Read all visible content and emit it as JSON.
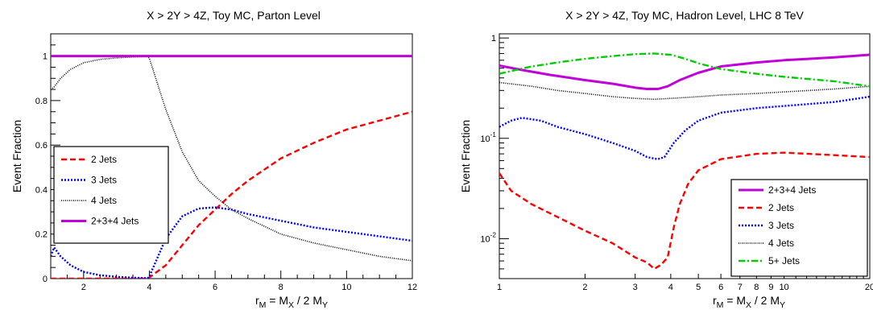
{
  "chart_data": [
    {
      "type": "line",
      "title": "X > 2Y > 4Z,  Toy MC, Parton Level",
      "xlabel": "r_M =  M_X / 2 M_Y",
      "ylabel": "Event Fraction",
      "xlim": [
        1,
        12
      ],
      "ylim": [
        0,
        1.1
      ],
      "xscale": "linear",
      "yscale": "linear",
      "xticks": [
        2,
        4,
        6,
        8,
        10,
        12
      ],
      "xtick_labels": [
        "2",
        "4",
        "6",
        "8",
        "10",
        "12"
      ],
      "yticks": [
        0,
        0.2,
        0.4,
        0.6,
        0.8,
        1
      ],
      "ytick_labels": [
        "0",
        "0.2",
        "0.4",
        "0.6",
        "0.8",
        "1"
      ],
      "legend_position": "left-middle",
      "grid": false,
      "series": [
        {
          "name": "2 Jets",
          "color": "#ff0000",
          "style": "dashed",
          "x": [
            1,
            2,
            3,
            3.95,
            4.0,
            4.5,
            5,
            5.5,
            6,
            6.5,
            7,
            8,
            9,
            10,
            11,
            12
          ],
          "y": [
            0,
            0,
            0,
            0,
            0.005,
            0.06,
            0.15,
            0.24,
            0.31,
            0.38,
            0.44,
            0.54,
            0.61,
            0.67,
            0.71,
            0.75
          ]
        },
        {
          "name": "3 Jets",
          "color": "#0000ff",
          "style": "dotted",
          "x": [
            1,
            1.1,
            1.3,
            1.6,
            2,
            2.5,
            3,
            3.5,
            3.95,
            4.0,
            4.5,
            5,
            5.5,
            6,
            6.5,
            7,
            8,
            9,
            10,
            11,
            12
          ],
          "y": [
            0.1,
            0.14,
            0.1,
            0.06,
            0.03,
            0.015,
            0.008,
            0.004,
            0.002,
            0.01,
            0.18,
            0.28,
            0.315,
            0.32,
            0.31,
            0.29,
            0.26,
            0.23,
            0.21,
            0.19,
            0.17
          ]
        },
        {
          "name": "4 Jets",
          "color": "#000000",
          "style": "densedot",
          "x": [
            1,
            1.1,
            1.3,
            1.6,
            2,
            2.5,
            3,
            3.5,
            3.95,
            4.0,
            4.5,
            5,
            5.5,
            6,
            6.5,
            7,
            8,
            9,
            10,
            11,
            12
          ],
          "y": [
            0.85,
            0.86,
            0.9,
            0.94,
            0.97,
            0.985,
            0.992,
            0.996,
            0.998,
            0.99,
            0.76,
            0.57,
            0.44,
            0.37,
            0.31,
            0.27,
            0.2,
            0.16,
            0.13,
            0.1,
            0.08
          ]
        },
        {
          "name": "2+3+4 Jets",
          "color": "#c000d8",
          "style": "solid",
          "x": [
            1,
            12
          ],
          "y": [
            1,
            1
          ]
        }
      ]
    },
    {
      "type": "line",
      "title": "X > 2Y > 4Z,  Toy MC, Hadron Level, LHC 8 TeV",
      "xlabel": "r_M =  M_X / 2 M_Y",
      "ylabel": "Event Fraction",
      "xlim": [
        1,
        20
      ],
      "ylim": [
        0.004,
        1.1
      ],
      "xscale": "log",
      "yscale": "log",
      "xticks": [
        1,
        2,
        3,
        4,
        5,
        6,
        7,
        8,
        9,
        10,
        20
      ],
      "xtick_labels": [
        "1",
        "2",
        "3",
        "4",
        "5",
        "6",
        "7",
        "8",
        "9",
        "10",
        "20"
      ],
      "yticks": [
        0.01,
        0.1,
        1
      ],
      "ytick_labels": [
        "10^-2",
        "10^-1",
        "1"
      ],
      "legend_position": "bottom-right",
      "grid": false,
      "series": [
        {
          "name": "2+3+4 Jets",
          "color": "#c000d8",
          "style": "solid",
          "x": [
            1,
            1.2,
            1.5,
            2,
            2.5,
            3,
            3.3,
            3.6,
            3.9,
            4.3,
            5,
            6,
            8,
            10,
            15,
            20
          ],
          "y": [
            0.53,
            0.48,
            0.43,
            0.38,
            0.35,
            0.32,
            0.31,
            0.31,
            0.33,
            0.38,
            0.45,
            0.52,
            0.57,
            0.6,
            0.64,
            0.68
          ]
        },
        {
          "name": "2 Jets",
          "color": "#ff0000",
          "style": "dashed",
          "x": [
            1,
            1.1,
            1.3,
            1.5,
            2,
            2.5,
            3,
            3.3,
            3.5,
            3.7,
            3.9,
            4.1,
            4.3,
            4.6,
            5,
            6,
            8,
            10,
            15,
            20
          ],
          "y": [
            0.045,
            0.03,
            0.022,
            0.018,
            0.012,
            0.009,
            0.0065,
            0.0058,
            0.005,
            0.0055,
            0.0065,
            0.013,
            0.022,
            0.035,
            0.048,
            0.062,
            0.07,
            0.072,
            0.068,
            0.065
          ]
        },
        {
          "name": "3 Jets",
          "color": "#0000ff",
          "style": "dotted",
          "x": [
            1,
            1.1,
            1.2,
            1.4,
            1.6,
            2,
            2.5,
            3,
            3.3,
            3.6,
            3.8,
            4.1,
            4.5,
            5,
            6,
            8,
            10,
            15,
            20
          ],
          "y": [
            0.13,
            0.15,
            0.16,
            0.15,
            0.13,
            0.11,
            0.09,
            0.075,
            0.065,
            0.062,
            0.065,
            0.09,
            0.12,
            0.15,
            0.18,
            0.2,
            0.21,
            0.23,
            0.26
          ]
        },
        {
          "name": "4 Jets",
          "color": "#000000",
          "style": "densedot",
          "x": [
            1,
            1.3,
            1.6,
            2,
            2.5,
            3,
            3.5,
            4,
            5,
            6,
            8,
            10,
            15,
            20
          ],
          "y": [
            0.36,
            0.33,
            0.3,
            0.28,
            0.26,
            0.25,
            0.245,
            0.25,
            0.26,
            0.27,
            0.28,
            0.29,
            0.31,
            0.33
          ]
        },
        {
          "name": "5+ Jets",
          "color": "#00cc00",
          "style": "dashdot",
          "x": [
            1,
            1.3,
            1.6,
            2,
            2.5,
            3,
            3.5,
            4,
            4.5,
            5,
            6,
            8,
            10,
            15,
            20
          ],
          "y": [
            0.44,
            0.52,
            0.57,
            0.62,
            0.66,
            0.69,
            0.7,
            0.68,
            0.62,
            0.56,
            0.49,
            0.44,
            0.41,
            0.37,
            0.33
          ]
        }
      ]
    }
  ]
}
